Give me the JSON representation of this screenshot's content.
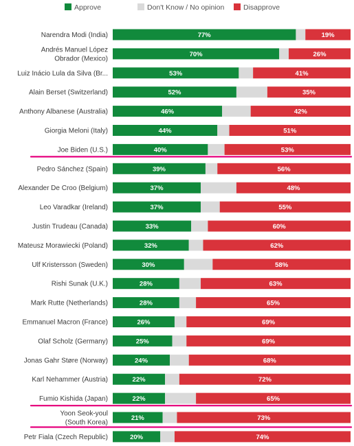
{
  "chart_data": {
    "type": "bar",
    "orientation": "horizontal",
    "stacked": true,
    "xlim": [
      0,
      100
    ],
    "legend": {
      "placement": "top",
      "items": [
        {
          "name": "Approve",
          "color": "#118a3c"
        },
        {
          "name": "Don't Know / No opinion",
          "color": "#dadada"
        },
        {
          "name": "Disapprove",
          "color": "#d9333b"
        }
      ]
    },
    "categories": [
      [
        "Narendra Modi (India)"
      ],
      [
        "Andrés Manuel López",
        "Obrador (Mexico)"
      ],
      [
        "Luiz Inácio Lula da Silva (Br..."
      ],
      [
        "Alain Berset (Switzerland)"
      ],
      [
        "Anthony Albanese (Australia)"
      ],
      [
        "Giorgia Meloni (Italy)"
      ],
      [
        "Joe Biden (U.S.)"
      ],
      [
        "Pedro Sánchez (Spain)"
      ],
      [
        "Alexander De Croo (Belgium)"
      ],
      [
        "Leo Varadkar (Ireland)"
      ],
      [
        "Justin Trudeau (Canada)"
      ],
      [
        "Mateusz Morawiecki (Poland)"
      ],
      [
        "Ulf Kristersson (Sweden)"
      ],
      [
        "Rishi Sunak (U.K.)"
      ],
      [
        "Mark Rutte (Netherlands)"
      ],
      [
        "Emmanuel Macron (France)"
      ],
      [
        "Olaf Scholz (Germany)"
      ],
      [
        "Jonas Gahr Støre (Norway)"
      ],
      [
        "Karl Nehammer (Austria)"
      ],
      [
        "Fumio Kishida (Japan)"
      ],
      [
        "Yoon Seok-youl",
        "(South Korea)"
      ],
      [
        "Petr Fiala (Czech Republic)"
      ]
    ],
    "series": [
      {
        "name": "Approve",
        "values": [
          77,
          70,
          53,
          52,
          46,
          44,
          40,
          39,
          37,
          37,
          33,
          32,
          30,
          28,
          28,
          26,
          25,
          24,
          22,
          22,
          21,
          20
        ]
      },
      {
        "name": "Don't Know / No opinion",
        "values": [
          4,
          4,
          6,
          13,
          12,
          5,
          7,
          5,
          15,
          8,
          7,
          6,
          12,
          9,
          7,
          5,
          6,
          8,
          6,
          13,
          6,
          6
        ]
      },
      {
        "name": "Disapprove",
        "values": [
          19,
          26,
          41,
          35,
          42,
          51,
          53,
          56,
          48,
          55,
          60,
          62,
          58,
          63,
          65,
          69,
          69,
          68,
          72,
          65,
          73,
          74
        ]
      }
    ],
    "value_labels": {
      "Approve": [
        "77%",
        "70%",
        "53%",
        "52%",
        "46%",
        "44%",
        "40%",
        "39%",
        "37%",
        "37%",
        "33%",
        "32%",
        "30%",
        "28%",
        "28%",
        "26%",
        "25%",
        "24%",
        "22%",
        "22%",
        "21%",
        "20%"
      ],
      "Disapprove": [
        "19%",
        "26%",
        "41%",
        "35%",
        "42%",
        "51%",
        "53%",
        "56%",
        "48%",
        "55%",
        "60%",
        "62%",
        "58%",
        "63%",
        "65%",
        "69%",
        "69%",
        "68%",
        "72%",
        "65%",
        "73%",
        "74%"
      ]
    },
    "highlighted_rows": [
      "Joe Biden (U.S.)",
      "Fumio Kishida (Japan)",
      "Yoon Seok-youl (South Korea)"
    ],
    "highlight_color": "#e6007e"
  }
}
